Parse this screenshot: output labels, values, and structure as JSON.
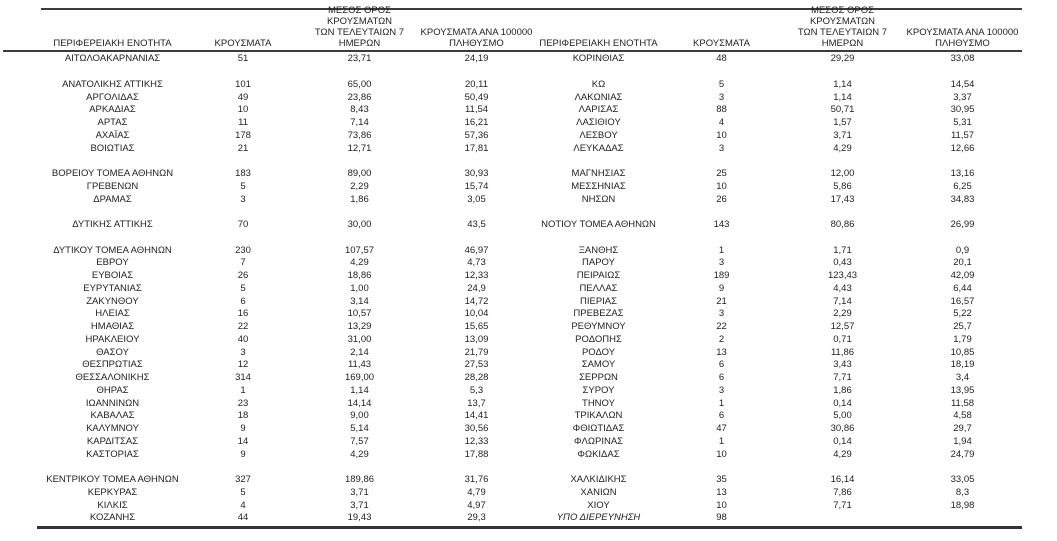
{
  "colors": {
    "text": "#1f1f1f",
    "line": "#3c3c3c",
    "background": "#ffffff"
  },
  "report": {
    "columns": {
      "region": "ΠΕΡΙΦΕΡΕΙΑΚΗ ΕΝΟΤΗΤΑ",
      "cases": "ΚΡΟΥΣΜΑΤΑ",
      "avg7": "ΜΕΣΟΣ ΟΡΟΣ ΚΡΟΥΣΜΑΤΩΝ\nΤΩΝ ΤΕΛΕΥΤΑΙΩΝ 7\nΗΜΕΡΩΝ",
      "per100k": "ΚΡΟΥΣΜΑΤΑ ΑΝΑ 100000\nΠΛΗΘΥΣΜΟ"
    },
    "rows": [
      {
        "left": [
          "ΑΙΤΩΛΟΑΚΑΡΝΑΝΙΑΣ",
          "51",
          "23,71",
          "24,19"
        ],
        "right": [
          "ΚΟΡΙΝΘΙΑΣ",
          "48",
          "29,29",
          "33,08"
        ]
      },
      {
        "left": null,
        "right": null
      },
      {
        "left": [
          "ΑΝΑΤΟΛΙΚΗΣ ΑΤΤΙΚΗΣ",
          "101",
          "65,00",
          "20,11"
        ],
        "right": [
          "ΚΩ",
          "5",
          "1,14",
          "14,54"
        ]
      },
      {
        "left": [
          "ΑΡΓΟΛΙΔΑΣ",
          "49",
          "23,86",
          "50,49"
        ],
        "right": [
          "ΛΑΚΩΝΙΑΣ",
          "3",
          "1,14",
          "3,37"
        ]
      },
      {
        "left": [
          "ΑΡΚΑΔΙΑΣ",
          "10",
          "8,43",
          "11,54"
        ],
        "right": [
          "ΛΑΡΙΣΑΣ",
          "88",
          "50,71",
          "30,95"
        ]
      },
      {
        "left": [
          "ΑΡΤΑΣ",
          "11",
          "7,14",
          "16,21"
        ],
        "right": [
          "ΛΑΣΙΘΙΟΥ",
          "4",
          "1,57",
          "5,31"
        ]
      },
      {
        "left": [
          "ΑΧΑΪΑΣ",
          "178",
          "73,86",
          "57,36"
        ],
        "right": [
          "ΛΕΣΒΟΥ",
          "10",
          "3,71",
          "11,57"
        ]
      },
      {
        "left": [
          "ΒΟΙΩΤΙΑΣ",
          "21",
          "12,71",
          "17,81"
        ],
        "right": [
          "ΛΕΥΚΑΔΑΣ",
          "3",
          "4,29",
          "12,66"
        ]
      },
      {
        "left": null,
        "right": null
      },
      {
        "left": [
          "ΒΟΡΕΙΟΥ ΤΟΜΕΑ ΑΘΗΝΩΝ",
          "183",
          "89,00",
          "30,93"
        ],
        "right": [
          "ΜΑΓΝΗΣΙΑΣ",
          "25",
          "12,00",
          "13,16"
        ]
      },
      {
        "left": [
          "ΓΡΕΒΕΝΩΝ",
          "5",
          "2,29",
          "15,74"
        ],
        "right": [
          "ΜΕΣΣΗΝΙΑΣ",
          "10",
          "5,86",
          "6,25"
        ]
      },
      {
        "left": [
          "ΔΡΑΜΑΣ",
          "3",
          "1,86",
          "3,05"
        ],
        "right": [
          "ΝΗΣΩΝ",
          "26",
          "17,43",
          "34,83"
        ]
      },
      {
        "left": null,
        "right": null
      },
      {
        "left": [
          "ΔΥΤΙΚΗΣ ΑΤΤΙΚΗΣ",
          "70",
          "30,00",
          "43,5"
        ],
        "right": [
          "ΝΟΤΙΟΥ ΤΟΜΕΑ ΑΘΗΝΩΝ",
          "143",
          "80,86",
          "26,99"
        ]
      },
      {
        "left": null,
        "right": null
      },
      {
        "left": [
          "ΔΥΤΙΚΟΥ ΤΟΜΕΑ ΑΘΗΝΩΝ",
          "230",
          "107,57",
          "46,97"
        ],
        "right": [
          "ΞΑΝΘΗΣ",
          "1",
          "1,71",
          "0,9"
        ]
      },
      {
        "left": [
          "ΕΒΡΟΥ",
          "7",
          "4,29",
          "4,73"
        ],
        "right": [
          "ΠΑΡΟΥ",
          "3",
          "0,43",
          "20,1"
        ]
      },
      {
        "left": [
          "ΕΥΒΟΙΑΣ",
          "26",
          "18,86",
          "12,33"
        ],
        "right": [
          "ΠΕΙΡΑΙΩΣ",
          "189",
          "123,43",
          "42,09"
        ]
      },
      {
        "left": [
          "ΕΥΡΥΤΑΝΙΑΣ",
          "5",
          "1,00",
          "24,9"
        ],
        "right": [
          "ΠΕΛΛΑΣ",
          "9",
          "4,43",
          "6,44"
        ]
      },
      {
        "left": [
          "ΖΑΚΥΝΘΟΥ",
          "6",
          "3,14",
          "14,72"
        ],
        "right": [
          "ΠΙΕΡΙΑΣ",
          "21",
          "7,14",
          "16,57"
        ]
      },
      {
        "left": [
          "ΗΛΕΙΑΣ",
          "16",
          "10,57",
          "10,04"
        ],
        "right": [
          "ΠΡΕΒΕΖΑΣ",
          "3",
          "2,29",
          "5,22"
        ]
      },
      {
        "left": [
          "ΗΜΑΘΙΑΣ",
          "22",
          "13,29",
          "15,65"
        ],
        "right": [
          "ΡΕΘΥΜΝΟΥ",
          "22",
          "12,57",
          "25,7"
        ]
      },
      {
        "left": [
          "ΗΡΑΚΛΕΙΟΥ",
          "40",
          "31,00",
          "13,09"
        ],
        "right": [
          "ΡΟΔΟΠΗΣ",
          "2",
          "0,71",
          "1,79"
        ]
      },
      {
        "left": [
          "ΘΑΣΟΥ",
          "3",
          "2,14",
          "21,79"
        ],
        "right": [
          "ΡΟΔΟΥ",
          "13",
          "11,86",
          "10,85"
        ]
      },
      {
        "left": [
          "ΘΕΣΠΡΩΤΙΑΣ",
          "12",
          "11,43",
          "27,53"
        ],
        "right": [
          "ΣΑΜΟΥ",
          "6",
          "3,43",
          "18,19"
        ]
      },
      {
        "left": [
          "ΘΕΣΣΑΛΟΝΙΚΗΣ",
          "314",
          "169,00",
          "28,28"
        ],
        "right": [
          "ΣΕΡΡΩΝ",
          "6",
          "7,71",
          "3,4"
        ]
      },
      {
        "left": [
          "ΘΗΡΑΣ",
          "1",
          "1,14",
          "5,3"
        ],
        "right": [
          "ΣΥΡΟΥ",
          "3",
          "1,86",
          "13,95"
        ]
      },
      {
        "left": [
          "ΙΩΑΝΝΙΝΩΝ",
          "23",
          "14,14",
          "13,7"
        ],
        "right": [
          "ΤΗΝΟΥ",
          "1",
          "0,14",
          "11,58"
        ]
      },
      {
        "left": [
          "ΚΑΒΑΛΑΣ",
          "18",
          "9,00",
          "14,41"
        ],
        "right": [
          "ΤΡΙΚΑΛΩΝ",
          "6",
          "5,00",
          "4,58"
        ]
      },
      {
        "left": [
          "ΚΑΛΥΜΝΟΥ",
          "9",
          "5,14",
          "30,56"
        ],
        "right": [
          "ΦΘΙΩΤΙΔΑΣ",
          "47",
          "30,86",
          "29,7"
        ]
      },
      {
        "left": [
          "ΚΑΡΔΙΤΣΑΣ",
          "14",
          "7,57",
          "12,33"
        ],
        "right": [
          "ΦΛΩΡΙΝΑΣ",
          "1",
          "0,14",
          "1,94"
        ]
      },
      {
        "left": [
          "ΚΑΣΤΟΡΙΑΣ",
          "9",
          "4,29",
          "17,88"
        ],
        "right": [
          "ΦΩΚΙΔΑΣ",
          "10",
          "4,29",
          "24,79"
        ]
      },
      {
        "left": null,
        "right": null
      },
      {
        "left": [
          "ΚΕΝΤΡΙΚΟΥ ΤΟΜΕΑ ΑΘΗΝΩΝ",
          "327",
          "189,86",
          "31,76"
        ],
        "right": [
          "ΧΑΛΚΙΔΙΚΗΣ",
          "35",
          "16,14",
          "33,05"
        ]
      },
      {
        "left": [
          "ΚΕΡΚΥΡΑΣ",
          "5",
          "3,71",
          "4,79"
        ],
        "right": [
          "ΧΑΝΙΩΝ",
          "13",
          "7,86",
          "8,3"
        ]
      },
      {
        "left": [
          "ΚΙΛΚΙΣ",
          "4",
          "3,71",
          "4,97"
        ],
        "right": [
          "ΧΙΟΥ",
          "10",
          "7,71",
          "18,98"
        ]
      },
      {
        "left": [
          "ΚΟΖΑΝΗΣ",
          "44",
          "19,43",
          "29,3"
        ],
        "right": [
          "ΥΠΟ ΔΙΕΡΕΥΝΗΣΗ",
          "98",
          "",
          ""
        ],
        "right_italic": true
      }
    ]
  }
}
